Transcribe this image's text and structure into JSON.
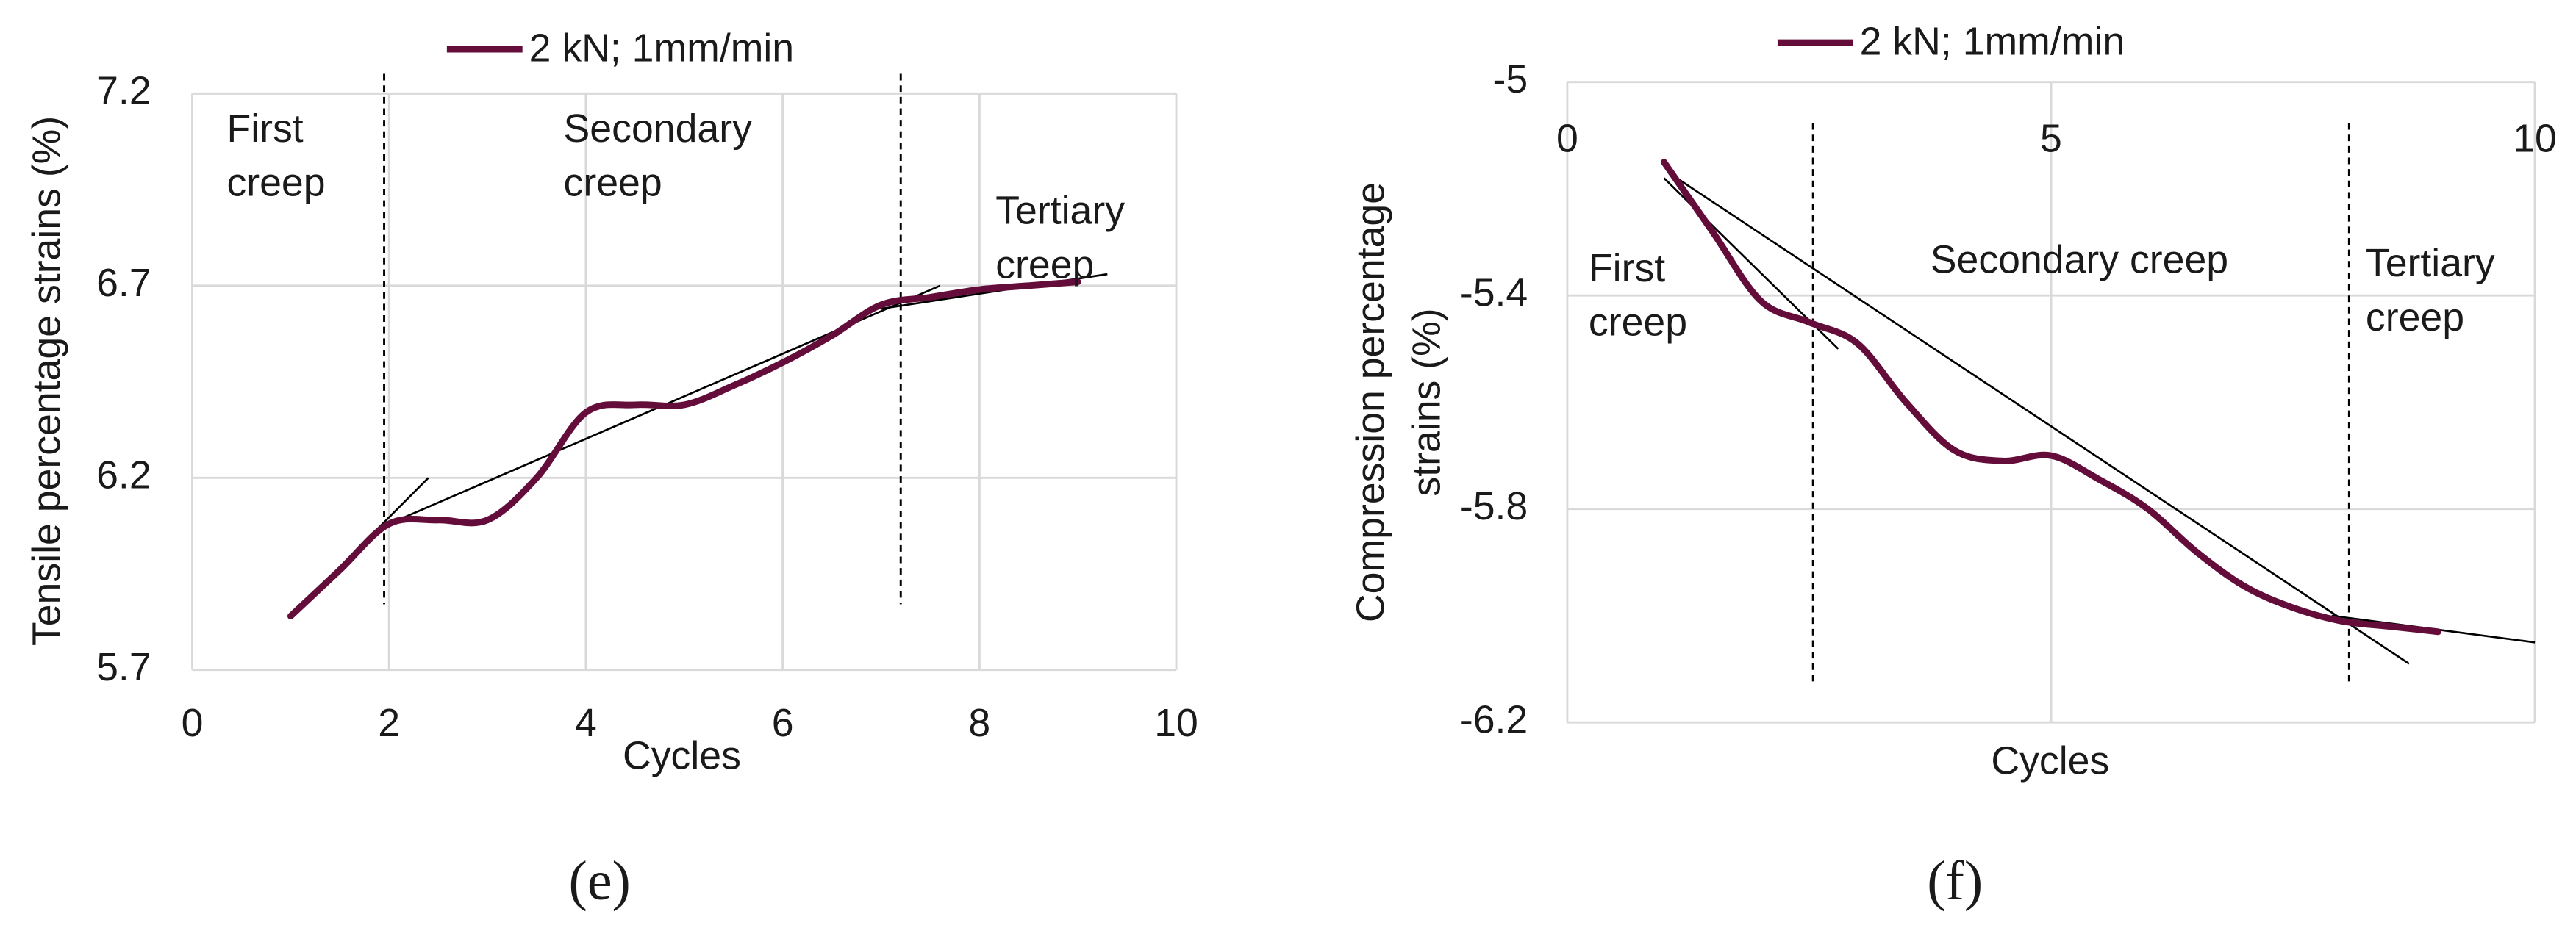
{
  "chart_data": [
    {
      "type": "line",
      "panel_label": "(e)",
      "x_label": "Cycles",
      "y_label": [
        "Tensile percentage strains (%)"
      ],
      "xlim": [
        0,
        10
      ],
      "xticks": [
        0,
        2,
        4,
        6,
        8,
        10
      ],
      "ylim": [
        5.7,
        7.2
      ],
      "yticks": [
        5.7,
        6.2,
        6.7,
        7.2
      ],
      "grid": true,
      "series": [
        {
          "name": "2 kN; 1mm/min",
          "color": "#640d3b",
          "x": [
            1,
            1.5,
            2,
            2.5,
            3,
            3.5,
            4,
            4.5,
            5,
            5.5,
            6,
            6.5,
            7,
            7.5,
            8,
            8.5,
            9
          ],
          "values": [
            5.84,
            5.96,
            6.08,
            6.09,
            6.09,
            6.2,
            6.37,
            6.39,
            6.39,
            6.44,
            6.5,
            6.57,
            6.65,
            6.67,
            6.69,
            6.7,
            6.71
          ]
        }
      ],
      "phase_boundaries": [
        1.95,
        7.2
      ],
      "trend_lines": [
        {
          "x": [
            1,
            2.4
          ],
          "y": [
            5.84,
            6.2
          ]
        },
        {
          "x": [
            2,
            7.6
          ],
          "y": [
            6.08,
            6.7
          ]
        },
        {
          "x": [
            7,
            9.3
          ],
          "y": [
            6.64,
            6.73
          ]
        }
      ],
      "annotations": [
        [
          "First",
          "creep"
        ],
        [
          "Secondary",
          "creep"
        ],
        [
          "Tertiary",
          "creep"
        ]
      ]
    },
    {
      "type": "line",
      "panel_label": "(f)",
      "x_label": "Cycles",
      "y_label": [
        "Compression percentage",
        "strains (%)"
      ],
      "xlim": [
        0,
        10
      ],
      "xticks": [
        0,
        5,
        10
      ],
      "ylim": [
        -6.2,
        -5
      ],
      "yticks": [
        -5,
        -5.4,
        -5.8,
        -6.2
      ],
      "grid": true,
      "series": [
        {
          "name": "2 kN; 1mm/min",
          "color": "#640d3b",
          "x": [
            1,
            1.5,
            2,
            2.5,
            3,
            3.5,
            4,
            4.5,
            5,
            5.5,
            6,
            6.5,
            7,
            7.5,
            8,
            8.5,
            9
          ],
          "values": [
            -5.15,
            -5.28,
            -5.41,
            -5.45,
            -5.49,
            -5.6,
            -5.69,
            -5.71,
            -5.7,
            -5.745,
            -5.8,
            -5.88,
            -5.945,
            -5.985,
            -6.01,
            -6.02,
            -6.03
          ]
        }
      ],
      "phase_boundaries": [
        2.54,
        8.08
      ],
      "trend_lines": [
        {
          "x": [
            1,
            2.8
          ],
          "y": [
            -5.18,
            -5.5
          ]
        },
        {
          "x": [
            1.05,
            8.7
          ],
          "y": [
            -5.17,
            -6.09
          ]
        },
        {
          "x": [
            7.9,
            10
          ],
          "y": [
            -6.0,
            -6.05
          ]
        }
      ],
      "annotations": [
        [
          "First",
          "creep"
        ],
        [
          "Secondary creep"
        ],
        [
          "Tertiary",
          "creep"
        ]
      ]
    }
  ]
}
